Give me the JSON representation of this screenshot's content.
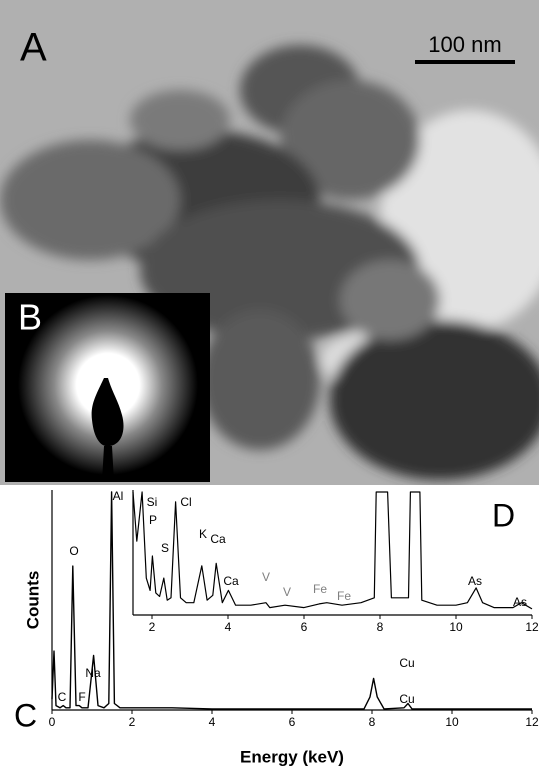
{
  "figure": {
    "panels": {
      "a": "A",
      "b": "B",
      "c": "C",
      "d": "D"
    },
    "scale_bar": "100 nm"
  },
  "chart_data": [
    {
      "type": "line",
      "x_label": "Energy (keV)",
      "y_label": "Counts",
      "xlim": [
        0,
        12
      ],
      "xticks": [
        0,
        2,
        4,
        6,
        8,
        10,
        12
      ],
      "ylim": [
        0,
        100
      ],
      "color": "#000000",
      "x": [
        0,
        0.05,
        0.1,
        0.2,
        0.28,
        0.35,
        0.45,
        0.52,
        0.6,
        0.68,
        0.75,
        0.9,
        1.04,
        1.15,
        1.3,
        1.42,
        1.49,
        1.56,
        1.7,
        2,
        2.5,
        3,
        4,
        5,
        6,
        7,
        7.8,
        7.95,
        8.04,
        8.13,
        8.3,
        8.8,
        8.9,
        9,
        9.5,
        10,
        11,
        12
      ],
      "values": [
        5,
        27,
        2,
        1,
        2,
        1,
        1,
        66,
        2,
        2,
        1,
        1,
        25,
        2,
        1,
        3,
        100,
        3,
        1,
        1,
        1,
        1,
        0.5,
        0.5,
        0.5,
        0.5,
        0.5,
        6,
        14.5,
        6,
        0.5,
        1,
        3,
        0.5,
        0.5,
        0.5,
        0.5,
        0.5
      ],
      "annotations": [
        {
          "text": "C",
          "color": "#000000"
        },
        {
          "text": "F",
          "color": "#000000"
        },
        {
          "text": "Na",
          "color": "#000000"
        },
        {
          "text": "O",
          "color": "#000000"
        },
        {
          "text": "Al",
          "color": "#000000"
        },
        {
          "text": "Cu",
          "color": "#000000"
        },
        {
          "text": "Cu",
          "color": "#000000"
        }
      ]
    },
    {
      "type": "line",
      "xlim": [
        1.5,
        12
      ],
      "xticks": [
        2,
        4,
        6,
        8,
        10,
        12
      ],
      "ylim": [
        0,
        100
      ],
      "color": "#000000",
      "x": [
        1.5,
        1.6,
        1.74,
        1.85,
        1.95,
        2.01,
        2.1,
        2.2,
        2.31,
        2.4,
        2.5,
        2.62,
        2.75,
        2.9,
        3.1,
        3.31,
        3.45,
        3.6,
        3.69,
        3.85,
        4.01,
        4.2,
        4.6,
        5,
        5.1,
        5.5,
        6,
        6.4,
        6.6,
        7,
        7.5,
        7.85,
        7.9,
        8.2,
        8.3,
        8.75,
        8.8,
        9.05,
        9.1,
        9.5,
        10,
        10.3,
        10.53,
        10.7,
        11,
        11.5,
        11.72,
        12
      ],
      "values": [
        100,
        60,
        100,
        30,
        20,
        48,
        18,
        15,
        30,
        12,
        14,
        92,
        14,
        10,
        10,
        40,
        12,
        16,
        42,
        10,
        20,
        8,
        8,
        10,
        6,
        8,
        6,
        9,
        10,
        8,
        10,
        14,
        100,
        100,
        14,
        14,
        100,
        100,
        12,
        8,
        8,
        10,
        22,
        10,
        6,
        6,
        10,
        5
      ],
      "annotations": [
        {
          "text": "Si",
          "color": "#000000"
        },
        {
          "text": "P",
          "color": "#000000"
        },
        {
          "text": "S",
          "color": "#000000"
        },
        {
          "text": "Cl",
          "color": "#000000"
        },
        {
          "text": "K",
          "color": "#000000"
        },
        {
          "text": "Ca",
          "color": "#000000"
        },
        {
          "text": "Ca",
          "color": "#000000"
        },
        {
          "text": "V",
          "color": "#808080"
        },
        {
          "text": "V",
          "color": "#808080"
        },
        {
          "text": "Fe",
          "color": "#808080"
        },
        {
          "text": "Fe",
          "color": "#808080"
        },
        {
          "text": "As",
          "color": "#000000"
        },
        {
          "text": "As",
          "color": "#000000"
        }
      ]
    }
  ]
}
